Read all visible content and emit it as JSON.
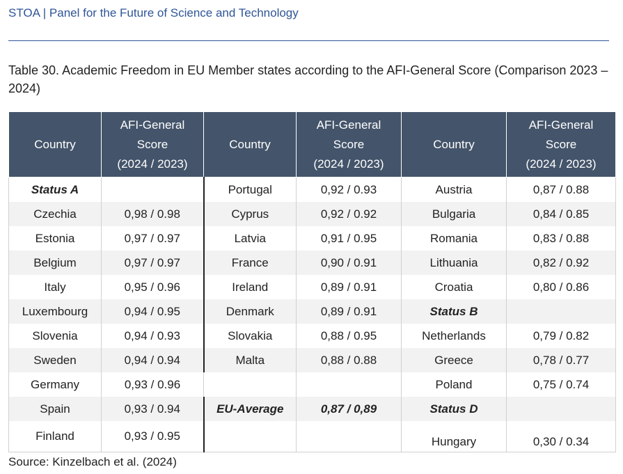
{
  "header": {
    "title": "STOA | Panel for the Future of Science and Technology"
  },
  "caption": "Table 30. Academic Freedom in EU Member states according to the AFI-General Score (Comparison 2023 – 2024)",
  "table": {
    "col_country": "Country",
    "col_score_line1": "AFI-General",
    "col_score_line2": "Score",
    "col_score_line3": "(2024 / 2023)",
    "rows": [
      [
        "Status A",
        "",
        "Portugal",
        "0,92 / 0.93",
        "Austria",
        "0,87 / 0.88"
      ],
      [
        "Czechia",
        "0,98 / 0.98",
        "Cyprus",
        "0,92 / 0.92",
        "Bulgaria",
        "0,84 / 0.85"
      ],
      [
        "Estonia",
        "0,97 / 0.97",
        "Latvia",
        "0,91 / 0.95",
        "Romania",
        "0,83 / 0.88"
      ],
      [
        "Belgium",
        "0,97 / 0.97",
        "France",
        "0,90 / 0.91",
        "Lithuania",
        "0,82 / 0.92"
      ],
      [
        "Italy",
        "0,95 / 0.96",
        "Ireland",
        "0,89 / 0.91",
        "Croatia",
        "0,80 / 0.86"
      ],
      [
        "Luxembourg",
        "0,94 / 0.95",
        "Denmark",
        "0,89 / 0.91",
        "Status B",
        ""
      ],
      [
        "Slovenia",
        "0,94 / 0.93",
        "Slovakia",
        "0,88 / 0.95",
        "Netherlands",
        "0,79 / 0.82"
      ],
      [
        "Sweden",
        "0,94 / 0.94",
        "Malta",
        "0,88 / 0.88",
        "Greece",
        "0,78 / 0.77"
      ],
      [
        "Germany",
        "0,93 / 0.96",
        "",
        "",
        "Poland",
        "0,75 / 0.74"
      ],
      [
        "Spain",
        "0,93 / 0.94",
        "EU-Average",
        "0,87 / 0,89",
        "Status D",
        ""
      ],
      [
        "Finland",
        "0,93 / 0.95",
        "",
        "",
        "Hungary",
        "0,30 / 0.34"
      ]
    ]
  },
  "source": "Source: Kinzelbach et al. (2024)"
}
